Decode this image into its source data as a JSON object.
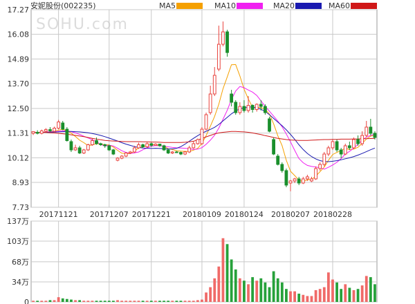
{
  "colors": {
    "up": "#e8413c",
    "down": "#1a8f2c",
    "vol_up": "#f06a68",
    "vol_down": "#26a13a",
    "grid": "#c8c8c8",
    "axis_text": "#333333",
    "ma5": "#f5a000",
    "ma10": "#f020f0",
    "ma20": "#1a1ab0",
    "ma60": "#d01818"
  },
  "header": {
    "title": "安妮股份(002235)",
    "watermark": "SOHU.com",
    "legend": [
      {
        "key": "ma5",
        "label": "MA5"
      },
      {
        "key": "ma10",
        "label": "MA10"
      },
      {
        "key": "ma20",
        "label": "MA20"
      },
      {
        "key": "ma60",
        "label": "MA60"
      }
    ]
  },
  "chart_data": [
    {
      "type": "candlestick",
      "title": "安妮股份(002235)",
      "y_ticks": [
        "17.27",
        "16.08",
        "14.89",
        "13.70",
        "12.50",
        "11.31",
        "10.12",
        "8.93",
        "7.73"
      ],
      "ylim": [
        7.73,
        17.27
      ],
      "x_ticks": [
        {
          "label": "20171121",
          "index": 6
        },
        {
          "label": "20171207",
          "index": 18
        },
        {
          "label": "20171221",
          "index": 28
        },
        {
          "label": "20180109",
          "index": 40
        },
        {
          "label": "20180124",
          "index": 50
        },
        {
          "label": "20180207",
          "index": 61
        },
        {
          "label": "20180228",
          "index": 71
        }
      ],
      "candles": [
        [
          11.3,
          11.38,
          11.22,
          11.4
        ],
        [
          11.35,
          11.3,
          11.25,
          11.45
        ],
        [
          11.3,
          11.42,
          11.25,
          11.48
        ],
        [
          11.4,
          11.48,
          11.35,
          11.55
        ],
        [
          11.48,
          11.42,
          11.38,
          11.6
        ],
        [
          11.4,
          11.55,
          11.35,
          11.62
        ],
        [
          11.55,
          11.85,
          11.5,
          11.95
        ],
        [
          11.8,
          11.5,
          11.45,
          11.9
        ],
        [
          11.5,
          10.95,
          10.9,
          11.6
        ],
        [
          10.9,
          10.5,
          10.4,
          11.0
        ],
        [
          10.5,
          10.6,
          10.45,
          10.75
        ],
        [
          10.6,
          10.35,
          10.3,
          10.7
        ],
        [
          10.35,
          10.5,
          10.3,
          10.55
        ],
        [
          10.5,
          10.75,
          10.45,
          10.8
        ],
        [
          10.75,
          10.95,
          10.7,
          11.05
        ],
        [
          10.95,
          10.8,
          10.75,
          11.1
        ],
        [
          10.8,
          10.75,
          10.7,
          10.85
        ],
        [
          10.75,
          10.7,
          10.6,
          10.8
        ],
        [
          10.7,
          10.5,
          10.45,
          10.75
        ],
        [
          10.5,
          10.3,
          10.25,
          10.55
        ],
        [
          10.0,
          10.1,
          9.95,
          10.15
        ],
        [
          10.1,
          10.2,
          10.05,
          10.25
        ],
        [
          10.2,
          10.35,
          10.15,
          10.4
        ],
        [
          10.35,
          10.4,
          10.3,
          10.45
        ],
        [
          10.4,
          10.6,
          10.35,
          10.7
        ],
        [
          10.6,
          10.75,
          10.55,
          10.85
        ],
        [
          10.75,
          10.65,
          10.6,
          10.8
        ],
        [
          10.65,
          10.8,
          10.6,
          10.9
        ],
        [
          10.8,
          10.72,
          10.65,
          10.85
        ],
        [
          10.72,
          10.78,
          10.7,
          10.82
        ],
        [
          10.78,
          10.7,
          10.65,
          10.8
        ],
        [
          10.7,
          10.5,
          10.45,
          10.75
        ],
        [
          10.5,
          10.35,
          10.3,
          10.55
        ],
        [
          10.35,
          10.4,
          10.3,
          10.45
        ],
        [
          10.4,
          10.38,
          10.35,
          10.45
        ],
        [
          10.38,
          10.3,
          10.25,
          10.42
        ],
        [
          10.3,
          10.4,
          10.25,
          10.45
        ],
        [
          10.4,
          10.6,
          10.35,
          10.7
        ],
        [
          10.6,
          10.8,
          10.55,
          10.9
        ],
        [
          10.8,
          11.0,
          10.75,
          11.05
        ],
        [
          10.8,
          11.5,
          10.75,
          11.6
        ],
        [
          11.5,
          12.2,
          11.45,
          12.3
        ],
        [
          12.3,
          13.2,
          12.2,
          13.6
        ],
        [
          13.2,
          14.1,
          13.1,
          14.5
        ],
        [
          14.4,
          15.6,
          14.3,
          16.5
        ],
        [
          15.6,
          16.2,
          15.5,
          16.7
        ],
        [
          16.2,
          15.2,
          15.0,
          16.3
        ],
        [
          13.2,
          12.8,
          12.6,
          13.4
        ],
        [
          12.8,
          12.3,
          12.2,
          12.9
        ],
        [
          12.3,
          12.6,
          12.2,
          12.8
        ],
        [
          12.6,
          12.4,
          12.3,
          12.9
        ],
        [
          12.4,
          12.65,
          12.3,
          13.1
        ],
        [
          12.65,
          12.45,
          12.3,
          12.7
        ],
        [
          12.45,
          12.7,
          12.35,
          12.75
        ],
        [
          12.7,
          12.6,
          12.4,
          12.9
        ],
        [
          12.6,
          12.3,
          12.2,
          12.7
        ],
        [
          12.0,
          11.4,
          11.35,
          12.1
        ],
        [
          11.0,
          10.3,
          10.25,
          11.1
        ],
        [
          10.2,
          9.8,
          9.75,
          10.3
        ],
        [
          9.8,
          9.5,
          9.4,
          9.9
        ],
        [
          9.5,
          8.8,
          8.7,
          9.6
        ],
        [
          8.9,
          9.0,
          8.5,
          9.05
        ],
        [
          9.0,
          9.1,
          8.9,
          9.15
        ],
        [
          9.1,
          8.9,
          8.8,
          9.2
        ],
        [
          8.9,
          9.1,
          8.85,
          9.2
        ],
        [
          9.1,
          9.2,
          9.0,
          9.3
        ],
        [
          9.0,
          9.1,
          8.95,
          9.2
        ],
        [
          9.1,
          9.6,
          9.05,
          9.7
        ],
        [
          9.6,
          9.8,
          9.5,
          9.9
        ],
        [
          9.8,
          10.3,
          9.7,
          10.4
        ],
        [
          10.3,
          10.6,
          10.2,
          10.7
        ],
        [
          10.6,
          10.9,
          10.5,
          11.0
        ],
        [
          10.9,
          10.5,
          10.4,
          11.0
        ],
        [
          10.5,
          10.3,
          10.1,
          10.6
        ],
        [
          10.3,
          10.7,
          10.25,
          10.8
        ],
        [
          10.7,
          10.6,
          10.5,
          10.9
        ],
        [
          10.6,
          11.0,
          10.55,
          11.1
        ],
        [
          11.0,
          10.8,
          10.7,
          11.2
        ],
        [
          10.8,
          11.2,
          10.7,
          11.4
        ],
        [
          11.2,
          11.6,
          11.1,
          11.9
        ],
        [
          11.6,
          11.3,
          11.2,
          12.0
        ],
        [
          11.3,
          11.1,
          11.0,
          11.4
        ]
      ],
      "series": [
        {
          "key": "ma5",
          "name": "MA5",
          "values": [
            11.35,
            11.35,
            11.35,
            11.36,
            11.38,
            11.4,
            11.46,
            11.49,
            11.43,
            11.31,
            11.15,
            10.97,
            10.85,
            10.71,
            10.74,
            10.8,
            10.79,
            10.75,
            10.74,
            10.64,
            10.48,
            10.34,
            10.32,
            10.32,
            10.44,
            10.6,
            10.65,
            10.72,
            10.75,
            10.76,
            10.71,
            10.68,
            10.56,
            10.52,
            10.46,
            10.44,
            10.43,
            10.43,
            10.49,
            10.58,
            10.82,
            11.19,
            11.64,
            12.11,
            12.7,
            13.45,
            14.02,
            14.61,
            14.62,
            14.07,
            13.43,
            12.96,
            12.56,
            12.55,
            12.54,
            12.47,
            12.23,
            11.76,
            11.18,
            10.71,
            10.0,
            9.47,
            9.26,
            9.04,
            8.97,
            9.06,
            9.07,
            9.23,
            9.45,
            9.67,
            10.0,
            10.28,
            10.38,
            10.47,
            10.59,
            10.51,
            10.54,
            10.63,
            10.82,
            11.03,
            11.16,
            11.21
          ]
        },
        {
          "key": "ma10",
          "name": "MA10",
          "values": [
            11.35,
            11.35,
            11.35,
            11.36,
            11.37,
            11.38,
            11.4,
            11.42,
            11.42,
            11.38,
            11.32,
            11.25,
            11.16,
            11.08,
            10.99,
            10.9,
            10.77,
            10.68,
            10.73,
            10.69,
            10.58,
            10.46,
            10.38,
            10.33,
            10.36,
            10.4,
            10.51,
            10.6,
            10.68,
            10.71,
            10.7,
            10.68,
            10.65,
            10.62,
            10.6,
            10.59,
            10.58,
            10.56,
            10.52,
            10.54,
            10.61,
            10.77,
            10.97,
            11.21,
            11.55,
            11.98,
            12.41,
            12.93,
            13.34,
            13.56,
            13.5,
            13.39,
            13.29,
            13.13,
            12.87,
            12.6,
            12.37,
            12.13,
            11.89,
            11.62,
            11.27,
            10.89,
            10.48,
            10.08,
            9.88,
            9.75,
            9.7,
            9.67,
            9.64,
            9.57,
            9.66,
            9.77,
            9.9,
            10.08,
            10.3,
            10.43,
            10.59,
            10.77,
            10.98,
            11.12,
            11.2,
            11.27
          ]
        },
        {
          "key": "ma20",
          "name": "MA20",
          "values": [
            11.35,
            11.35,
            11.35,
            11.35,
            11.36,
            11.36,
            11.37,
            11.38,
            11.39,
            11.39,
            11.38,
            11.37,
            11.35,
            11.33,
            11.29,
            11.25,
            11.2,
            11.14,
            11.07,
            11.0,
            10.93,
            10.85,
            10.78,
            10.72,
            10.66,
            10.62,
            10.59,
            10.58,
            10.57,
            10.58,
            10.57,
            10.56,
            10.55,
            10.55,
            10.58,
            10.66,
            10.78,
            10.92,
            11.06,
            11.19,
            11.31,
            11.4,
            11.49,
            11.59,
            11.73,
            11.9,
            12.07,
            12.24,
            12.38,
            12.48,
            12.54,
            12.57,
            12.57,
            12.53,
            12.46,
            12.36,
            12.2,
            12.02,
            11.84,
            11.67,
            11.47,
            11.25,
            11.01,
            10.75,
            10.52,
            10.33,
            10.18,
            10.06,
            9.98,
            9.94,
            9.93,
            9.95,
            9.98,
            10.02,
            10.07,
            10.12,
            10.18,
            10.25,
            10.33,
            10.42,
            10.51,
            10.59
          ]
        },
        {
          "key": "ma60",
          "name": "MA60",
          "values": [
            11.35,
            11.35,
            11.35,
            11.34,
            11.33,
            11.32,
            11.3,
            11.28,
            11.26,
            11.23,
            11.2,
            11.17,
            11.14,
            11.1,
            11.06,
            11.02,
            10.99,
            10.96,
            10.94,
            10.93,
            10.92,
            10.91,
            10.9,
            10.9,
            10.9,
            10.9,
            10.89,
            10.89,
            10.88,
            10.88,
            10.87,
            10.86,
            10.86,
            10.86,
            10.86,
            10.86,
            10.87,
            10.89,
            10.92,
            10.98,
            11.05,
            11.13,
            11.2,
            11.27,
            11.32,
            11.35,
            11.37,
            11.39,
            11.39,
            11.38,
            11.37,
            11.35,
            11.32,
            11.28,
            11.24,
            11.19,
            11.15,
            11.1,
            11.06,
            11.03,
            11.0,
            10.98,
            10.97,
            10.96,
            10.96,
            10.96,
            10.97,
            10.98,
            10.99,
            11.0,
            11.0,
            11.01,
            11.01,
            11.02,
            11.02,
            11.02,
            11.03,
            11.03,
            11.04,
            11.04,
            11.05,
            11.06
          ]
        }
      ]
    },
    {
      "type": "bar",
      "title": "",
      "y_ticks": [
        "137万",
        "103万",
        "68万",
        "34万",
        "0"
      ],
      "ylim": [
        0,
        137
      ],
      "unit": "万",
      "values": [
        2,
        2,
        2,
        2,
        3,
        3,
        8,
        6,
        5,
        4,
        3,
        3,
        2,
        2,
        2,
        2,
        2,
        2,
        2,
        2,
        3,
        2,
        2,
        2,
        2,
        2,
        2,
        2,
        2,
        2,
        2,
        2,
        2,
        2,
        2,
        2,
        2,
        2,
        2,
        3,
        4,
        16,
        25,
        40,
        60,
        108,
        98,
        72,
        55,
        40,
        36,
        30,
        42,
        36,
        40,
        33,
        25,
        52,
        40,
        33,
        22,
        18,
        18,
        14,
        12,
        10,
        10,
        20,
        22,
        25,
        50,
        38,
        33,
        22,
        30,
        24,
        20,
        22,
        28,
        44,
        42,
        30
      ],
      "up": [
        true,
        false,
        true,
        true,
        false,
        true,
        true,
        false,
        false,
        false,
        true,
        false,
        true,
        true,
        true,
        false,
        false,
        false,
        false,
        false,
        true,
        true,
        true,
        true,
        true,
        true,
        false,
        true,
        false,
        true,
        false,
        false,
        false,
        true,
        false,
        false,
        true,
        true,
        true,
        true,
        true,
        true,
        true,
        true,
        true,
        true,
        false,
        false,
        false,
        true,
        false,
        true,
        false,
        true,
        false,
        false,
        false,
        false,
        false,
        false,
        false,
        true,
        true,
        false,
        true,
        true,
        true,
        true,
        true,
        true,
        true,
        true,
        false,
        false,
        true,
        false,
        true,
        false,
        true,
        true,
        false,
        false
      ]
    }
  ]
}
